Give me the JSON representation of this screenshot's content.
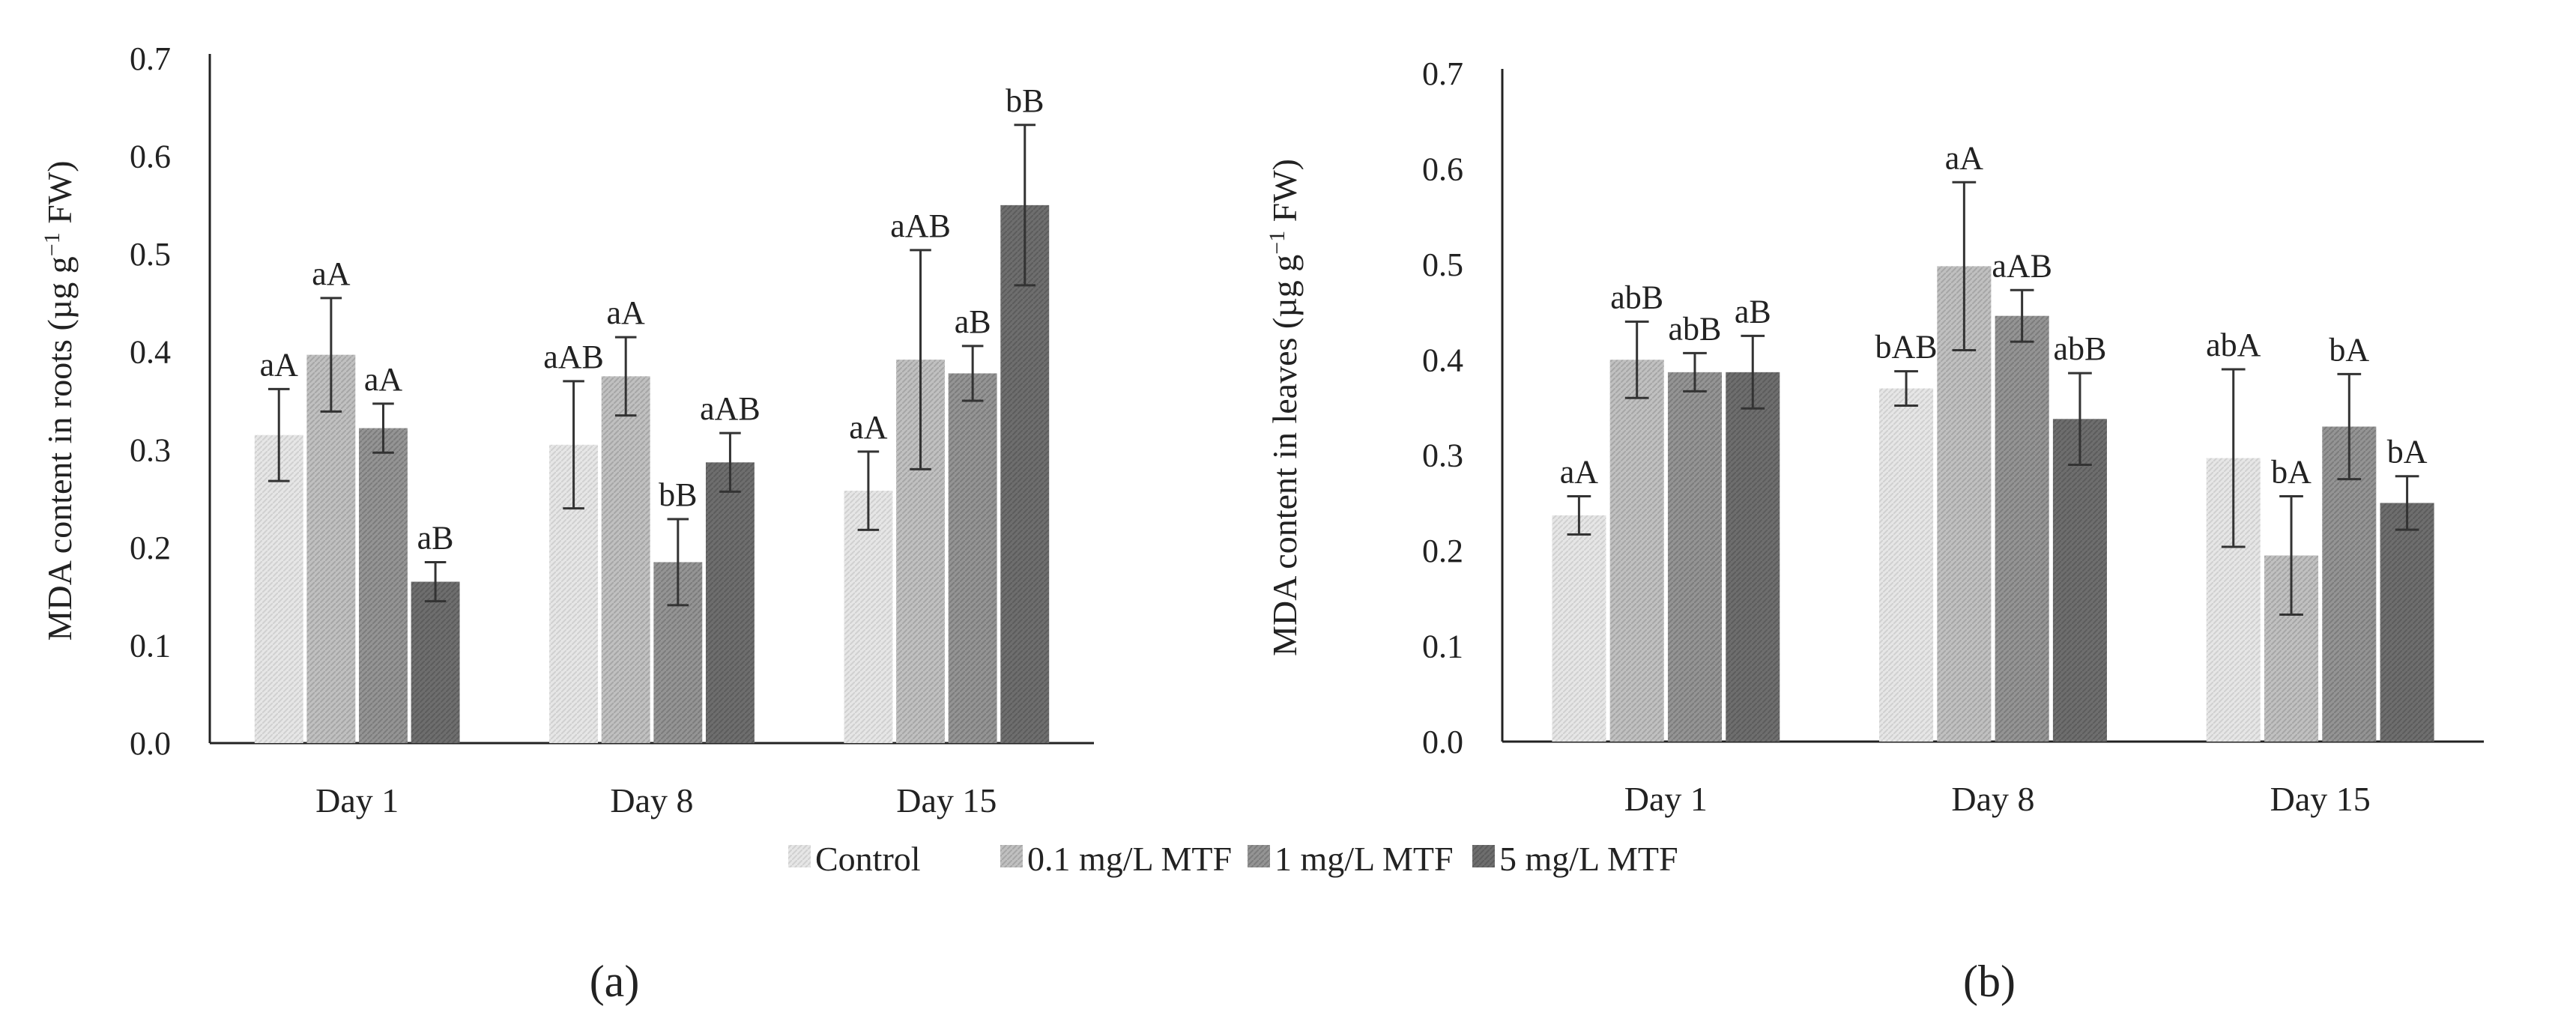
{
  "legend": [
    {
      "label": "Control",
      "color": "#e1e1e1",
      "pattern": "pat-control"
    },
    {
      "label": "0.1 mg/L MTF",
      "color": "#b9b9b9",
      "pattern": "pat-01"
    },
    {
      "label": "1 mg/L MTF",
      "color": "#8f8f8f",
      "pattern": "pat-1"
    },
    {
      "label": "5 mg/L MTF",
      "color": "#6a6a6a",
      "pattern": "pat-5"
    }
  ],
  "chart_data": [
    {
      "id": "a",
      "panel_label": "(a)",
      "type": "bar",
      "ylabel_main": "MDA content in roots (µg g",
      "ylabel_sup": "−1",
      "ylabel_end": " FW)",
      "ylim": [
        0,
        0.7
      ],
      "yticks": [
        "0.0",
        "0.1",
        "0.2",
        "0.3",
        "0.4",
        "0.5",
        "0.6",
        "0.7"
      ],
      "categories": [
        "Day 1",
        "Day 8",
        "Day 15"
      ],
      "series": [
        {
          "name": "Control",
          "values": [
            0.315,
            0.305,
            0.258
          ],
          "errors": [
            0.047,
            0.065,
            0.04
          ],
          "labels": [
            "aA",
            "aAB",
            "aA"
          ]
        },
        {
          "name": "0.1 mg/L MTF",
          "values": [
            0.397,
            0.375,
            0.392
          ],
          "errors": [
            0.058,
            0.04,
            0.112
          ],
          "labels": [
            "aA",
            "aA",
            "aAB"
          ]
        },
        {
          "name": "1 mg/L MTF",
          "values": [
            0.322,
            0.185,
            0.378
          ],
          "errors": [
            0.025,
            0.044,
            0.028
          ],
          "labels": [
            "aA",
            "bB",
            "aB"
          ]
        },
        {
          "name": "5 mg/L MTF",
          "values": [
            0.165,
            0.287,
            0.55
          ],
          "errors": [
            0.02,
            0.03,
            0.082
          ],
          "labels": [
            "aB",
            "aAB",
            "bB"
          ]
        }
      ]
    },
    {
      "id": "b",
      "panel_label": "(b)",
      "type": "bar",
      "ylabel_main": "MDA content in leaves (µg g",
      "ylabel_sup": "−1",
      "ylabel_end": " FW)",
      "ylim": [
        0,
        0.7
      ],
      "yticks": [
        "0.0",
        "0.1",
        "0.2",
        "0.3",
        "0.4",
        "0.5",
        "0.6",
        "0.7"
      ],
      "categories": [
        "Day 1",
        "Day 8",
        "Day 15"
      ],
      "series": [
        {
          "name": "Control",
          "values": [
            0.237,
            0.37,
            0.297
          ],
          "errors": [
            0.02,
            0.018,
            0.093
          ],
          "labels": [
            "aA",
            "bAB",
            "abA"
          ]
        },
        {
          "name": "0.1 mg/L MTF",
          "values": [
            0.4,
            0.498,
            0.195
          ],
          "errors": [
            0.04,
            0.088,
            0.062
          ],
          "labels": [
            "abB",
            "aA",
            "bA"
          ]
        },
        {
          "name": "1 mg/L MTF",
          "values": [
            0.387,
            0.446,
            0.33
          ],
          "errors": [
            0.02,
            0.027,
            0.055
          ],
          "labels": [
            "abB",
            "aAB",
            "bA"
          ]
        },
        {
          "name": "5 mg/L MTF",
          "values": [
            0.387,
            0.338,
            0.25
          ],
          "errors": [
            0.038,
            0.048,
            0.028
          ],
          "labels": [
            "aB",
            "abB",
            "bA"
          ]
        }
      ]
    }
  ]
}
